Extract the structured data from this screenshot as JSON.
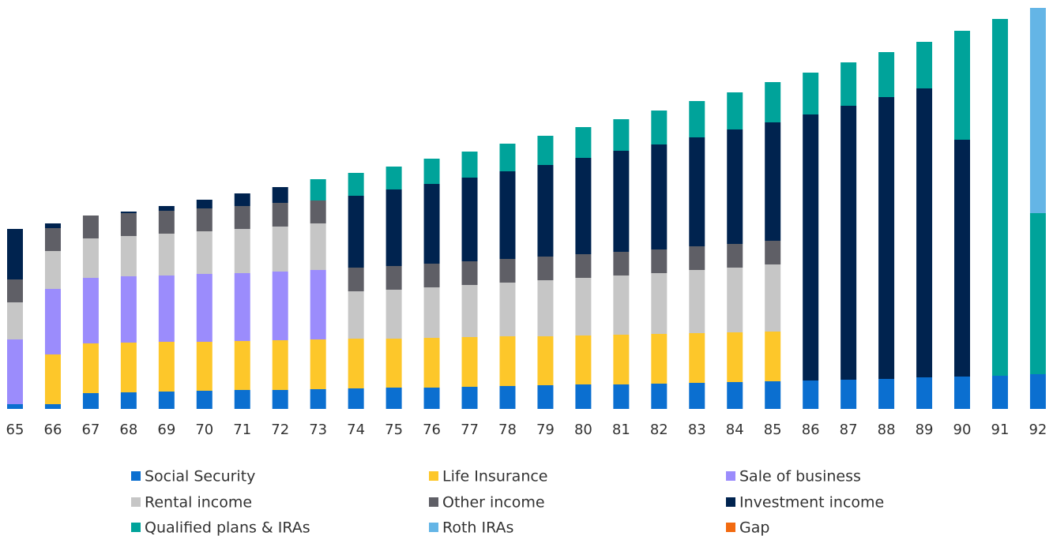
{
  "chart_data": {
    "type": "stacked_bar",
    "categories": [
      "65",
      "66",
      "67",
      "68",
      "69",
      "70",
      "71",
      "72",
      "73",
      "74",
      "75",
      "76",
      "77",
      "78",
      "79",
      "80",
      "81",
      "82",
      "83",
      "84",
      "85",
      "86",
      "87",
      "88",
      "89",
      "90",
      "91",
      "92"
    ],
    "ylim": [
      0,
      508
    ],
    "series": [
      {
        "name": "Social Security",
        "color": "#0b6fd0",
        "values": [
          6,
          6,
          20,
          21,
          22,
          23,
          24,
          24,
          25,
          26,
          27,
          27,
          28,
          29,
          30,
          31,
          31,
          32,
          33,
          34,
          35,
          36,
          37,
          38,
          40,
          41,
          42,
          44
        ]
      },
      {
        "name": "Life Insurance",
        "color": "#fdc72a",
        "values": [
          0,
          63,
          63,
          63,
          63,
          62,
          62,
          63,
          63,
          63,
          62,
          63,
          63,
          63,
          62,
          62,
          63,
          63,
          63,
          63,
          63,
          0,
          0,
          0,
          0,
          0,
          0,
          0
        ]
      },
      {
        "name": "Sale of business",
        "color": "#9b8cfc",
        "values": [
          82,
          83,
          83,
          84,
          84,
          86,
          86,
          87,
          88,
          0,
          0,
          0,
          0,
          0,
          0,
          0,
          0,
          0,
          0,
          0,
          0,
          0,
          0,
          0,
          0,
          0,
          0,
          0
        ]
      },
      {
        "name": "Rental income",
        "color": "#c6c6c6",
        "values": [
          47,
          48,
          50,
          51,
          53,
          54,
          56,
          57,
          59,
          60,
          62,
          64,
          66,
          68,
          71,
          73,
          75,
          77,
          80,
          82,
          85,
          0,
          0,
          0,
          0,
          0,
          0,
          0
        ]
      },
      {
        "name": "Other income",
        "color": "#5f5f66",
        "values": [
          29,
          29,
          29,
          29,
          29,
          29,
          29,
          30,
          29,
          30,
          30,
          30,
          30,
          30,
          30,
          30,
          30,
          30,
          30,
          30,
          30,
          0,
          0,
          0,
          0,
          0,
          0,
          0
        ]
      },
      {
        "name": "Investment income",
        "color": "#00234f",
        "values": [
          64,
          6,
          0,
          2,
          6,
          11,
          16,
          20,
          0,
          91,
          97,
          101,
          106,
          111,
          116,
          122,
          128,
          133,
          138,
          145,
          150,
          337,
          347,
          357,
          366,
          300,
          0,
          0
        ]
      },
      {
        "name": "Qualified plans & IRAs",
        "color": "#00a39a",
        "values": [
          0,
          0,
          0,
          0,
          0,
          0,
          0,
          0,
          27,
          29,
          29,
          32,
          33,
          35,
          37,
          39,
          40,
          43,
          46,
          47,
          51,
          53,
          55,
          57,
          59,
          138,
          452,
          204
        ]
      },
      {
        "name": "Roth IRAs",
        "color": "#64b5e6",
        "values": [
          0,
          0,
          0,
          0,
          0,
          0,
          0,
          0,
          0,
          0,
          0,
          0,
          0,
          0,
          0,
          0,
          0,
          0,
          0,
          0,
          0,
          0,
          0,
          0,
          0,
          0,
          0,
          260
        ]
      },
      {
        "name": "Gap",
        "color": "#f26a10",
        "values": [
          0,
          0,
          0,
          0,
          0,
          0,
          0,
          0,
          0,
          0,
          0,
          0,
          0,
          0,
          0,
          0,
          0,
          0,
          0,
          0,
          0,
          0,
          0,
          0,
          0,
          0,
          0,
          0
        ]
      }
    ]
  }
}
